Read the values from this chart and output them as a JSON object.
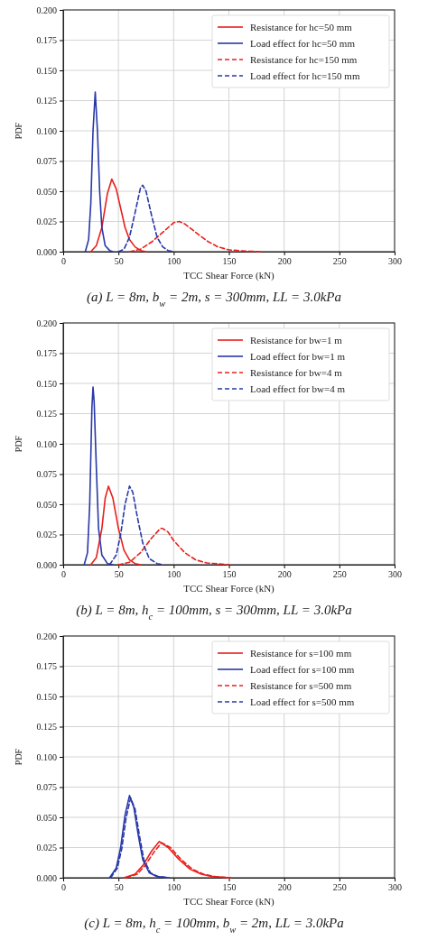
{
  "chart_data": [
    {
      "type": "line",
      "xlabel": "TCC Shear Force (kN)",
      "ylabel": "PDF",
      "xlim": [
        0,
        300
      ],
      "xticks": [
        0,
        50,
        100,
        150,
        200,
        250,
        300
      ],
      "ylim": [
        0,
        0.2
      ],
      "yticks": [
        {
          "value": 0,
          "label": "0.000"
        },
        {
          "value": 0.025,
          "label": "0.025"
        },
        {
          "value": 0.05,
          "label": "0.050"
        },
        {
          "value": 0.075,
          "label": "0.075"
        },
        {
          "value": 0.1,
          "label": "0.100"
        },
        {
          "value": 0.125,
          "label": "0.125"
        },
        {
          "value": 0.15,
          "label": "0.150"
        },
        {
          "value": 0.175,
          "label": "0.175"
        },
        {
          "value": 0.2,
          "label": "0.200"
        }
      ],
      "grid": true,
      "legend": "top right",
      "marker": "none",
      "annotations": [
        "(a) L = 8m, b$_{w}$ = 2m, s = 300mm, LL = 3.0kPa"
      ],
      "series": [
        {
          "name": "Resistance for hc=50 mm",
          "color": "#e8201c",
          "line_style": "solid",
          "x": [
            25,
            30,
            35,
            40,
            44,
            48,
            52,
            56,
            60,
            65,
            70,
            75
          ],
          "values": [
            0,
            0.005,
            0.02,
            0.048,
            0.06,
            0.052,
            0.036,
            0.02,
            0.01,
            0.004,
            0.001,
            0
          ]
        },
        {
          "name": "Load effect for hc=50 mm",
          "color": "#2838a8",
          "line_style": "solid",
          "x": [
            20,
            23,
            25,
            27,
            29,
            31,
            33,
            35,
            38,
            42,
            45
          ],
          "values": [
            0,
            0.01,
            0.04,
            0.1,
            0.132,
            0.1,
            0.05,
            0.02,
            0.005,
            0.001,
            0
          ]
        },
        {
          "name": "Resistance for hc=150 mm",
          "color": "#e8201c",
          "line_style": "dashed",
          "x": [
            60,
            70,
            80,
            90,
            100,
            105,
            110,
            120,
            130,
            140,
            150,
            165,
            180
          ],
          "values": [
            0,
            0.002,
            0.008,
            0.016,
            0.024,
            0.025,
            0.023,
            0.016,
            0.009,
            0.004,
            0.0015,
            0.0005,
            0
          ]
        },
        {
          "name": "Load effect for hc=150 mm",
          "color": "#2838a8",
          "line_style": "dashed",
          "x": [
            50,
            55,
            60,
            65,
            70,
            72,
            75,
            80,
            85,
            90,
            95,
            100
          ],
          "values": [
            0,
            0.002,
            0.012,
            0.032,
            0.053,
            0.055,
            0.05,
            0.03,
            0.012,
            0.004,
            0.001,
            0
          ]
        }
      ]
    },
    {
      "type": "line",
      "xlabel": "TCC Shear Force (kN)",
      "ylabel": "PDF",
      "xlim": [
        0,
        300
      ],
      "xticks": [
        0,
        50,
        100,
        150,
        200,
        250,
        300
      ],
      "ylim": [
        0,
        0.2
      ],
      "yticks": [
        {
          "value": 0,
          "label": "0.000"
        },
        {
          "value": 0.025,
          "label": "0.025"
        },
        {
          "value": 0.05,
          "label": "0.050"
        },
        {
          "value": 0.075,
          "label": "0.075"
        },
        {
          "value": 0.1,
          "label": "0.100"
        },
        {
          "value": 0.125,
          "label": "0.125"
        },
        {
          "value": 0.15,
          "label": "0.150"
        },
        {
          "value": 0.175,
          "label": "0.175"
        },
        {
          "value": 0.2,
          "label": "0.200"
        }
      ],
      "grid": true,
      "legend": "top right",
      "marker": "none",
      "annotations": [
        "(b) L = 8m, h$_{c}$ = 100mm, s = 300mm, LL = 3.0kPa"
      ],
      "series": [
        {
          "name": "Resistance for bw=1 m",
          "color": "#e8201c",
          "line_style": "solid",
          "x": [
            25,
            30,
            35,
            38,
            41,
            45,
            50,
            55,
            60,
            65,
            70
          ],
          "values": [
            0,
            0.006,
            0.03,
            0.055,
            0.065,
            0.055,
            0.03,
            0.012,
            0.004,
            0.001,
            0
          ]
        },
        {
          "name": "Load effect for bw=1 m",
          "color": "#2838a8",
          "line_style": "solid",
          "x": [
            19,
            22,
            24,
            26,
            27,
            28,
            30,
            32,
            35,
            40,
            45
          ],
          "values": [
            0,
            0.01,
            0.05,
            0.13,
            0.147,
            0.135,
            0.08,
            0.03,
            0.008,
            0.001,
            0
          ]
        },
        {
          "name": "Resistance for bw=4 m",
          "color": "#e8201c",
          "line_style": "dashed",
          "x": [
            50,
            60,
            70,
            80,
            88,
            90,
            95,
            100,
            110,
            120,
            130,
            150
          ],
          "values": [
            0,
            0.002,
            0.01,
            0.022,
            0.03,
            0.03,
            0.027,
            0.02,
            0.01,
            0.004,
            0.0015,
            0
          ]
        },
        {
          "name": "Load effect for bw=4 m",
          "color": "#2838a8",
          "line_style": "dashed",
          "x": [
            42,
            48,
            52,
            56,
            60,
            63,
            67,
            72,
            78,
            85,
            90
          ],
          "values": [
            0,
            0.008,
            0.025,
            0.05,
            0.065,
            0.06,
            0.04,
            0.018,
            0.005,
            0.001,
            0
          ]
        }
      ]
    },
    {
      "type": "line",
      "xlabel": "TCC Shear Force (kN)",
      "ylabel": "PDF",
      "xlim": [
        0,
        300
      ],
      "xticks": [
        0,
        50,
        100,
        150,
        200,
        250,
        300
      ],
      "ylim": [
        0,
        0.2
      ],
      "yticks": [
        {
          "value": 0,
          "label": "0.000"
        },
        {
          "value": 0.025,
          "label": "0.025"
        },
        {
          "value": 0.05,
          "label": "0.050"
        },
        {
          "value": 0.075,
          "label": "0.075"
        },
        {
          "value": 0.1,
          "label": "0.100"
        },
        {
          "value": 0.125,
          "label": "0.125"
        },
        {
          "value": 0.15,
          "label": "0.150"
        },
        {
          "value": 0.175,
          "label": "0.175"
        },
        {
          "value": 0.2,
          "label": "0.200"
        }
      ],
      "grid": true,
      "legend": "top right",
      "marker": "none",
      "annotations": [
        "(c) L = 8m, h$_{c}$ = 100mm, b$_{w}$ = 2m, LL = 3.0kPa"
      ],
      "series": [
        {
          "name": "Resistance for s=100 mm",
          "color": "#e8201c",
          "line_style": "solid",
          "x": [
            55,
            65,
            72,
            80,
            87,
            95,
            105,
            115,
            125,
            135,
            150
          ],
          "values": [
            0,
            0.003,
            0.01,
            0.022,
            0.03,
            0.025,
            0.015,
            0.007,
            0.003,
            0.001,
            0
          ]
        },
        {
          "name": "Load effect for s=100 mm",
          "color": "#2838a8",
          "line_style": "solid",
          "x": [
            42,
            48,
            52,
            56,
            60,
            64,
            68,
            72,
            78,
            85,
            95
          ],
          "values": [
            0,
            0.008,
            0.025,
            0.052,
            0.068,
            0.058,
            0.035,
            0.015,
            0.004,
            0.001,
            0
          ]
        },
        {
          "name": "Resistance for s=500 mm",
          "color": "#e8201c",
          "line_style": "dashed",
          "x": [
            57,
            67,
            74,
            82,
            89,
            97,
            107,
            117,
            127,
            137,
            152
          ],
          "values": [
            0,
            0.003,
            0.01,
            0.021,
            0.029,
            0.025,
            0.015,
            0.007,
            0.003,
            0.001,
            0
          ]
        },
        {
          "name": "Load effect for s=500 mm",
          "color": "#2838a8",
          "line_style": "dashed",
          "x": [
            43,
            49,
            53,
            57,
            61,
            65,
            69,
            73,
            79,
            86,
            96
          ],
          "values": [
            0,
            0.008,
            0.024,
            0.05,
            0.066,
            0.057,
            0.035,
            0.015,
            0.004,
            0.001,
            0
          ]
        }
      ]
    }
  ]
}
